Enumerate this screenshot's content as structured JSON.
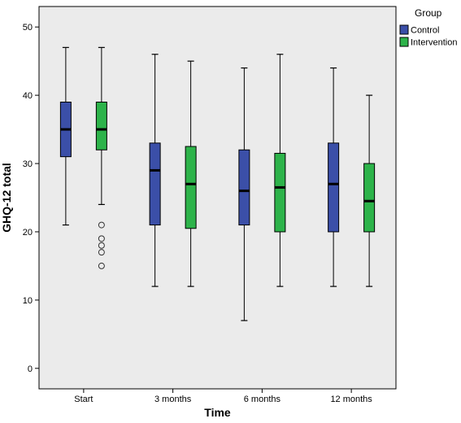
{
  "chart_data": {
    "type": "boxplot",
    "xlabel": "Time",
    "ylabel": "GHQ-12 total",
    "ylim": [
      -3,
      53
    ],
    "yticks": [
      0,
      10,
      20,
      30,
      40,
      50
    ],
    "categories": [
      "Start",
      "3 months",
      "6 months",
      "12 months"
    ],
    "legend": {
      "title": "Group",
      "placement": "top-right-outside"
    },
    "grid": false,
    "series": [
      {
        "name": "Control",
        "color": "#3B4FA8",
        "boxes": [
          {
            "whisker_low": 21,
            "q1": 31,
            "median": 35,
            "q3": 39,
            "whisker_high": 47,
            "outliers": []
          },
          {
            "whisker_low": 12,
            "q1": 21,
            "median": 29,
            "q3": 33,
            "whisker_high": 46,
            "outliers": []
          },
          {
            "whisker_low": 7,
            "q1": 21,
            "median": 26,
            "q3": 32,
            "whisker_high": 44,
            "outliers": []
          },
          {
            "whisker_low": 12,
            "q1": 20,
            "median": 27,
            "q3": 33,
            "whisker_high": 44,
            "outliers": []
          }
        ]
      },
      {
        "name": "Intervention",
        "color": "#2DB34A",
        "boxes": [
          {
            "whisker_low": 24,
            "q1": 32,
            "median": 35,
            "q3": 39,
            "whisker_high": 47,
            "outliers": [
              15,
              17,
              18,
              19,
              21
            ]
          },
          {
            "whisker_low": 12,
            "q1": 20.5,
            "median": 27,
            "q3": 32.5,
            "whisker_high": 45,
            "outliers": []
          },
          {
            "whisker_low": 12,
            "q1": 20,
            "median": 26.5,
            "q3": 31.5,
            "whisker_high": 46,
            "outliers": []
          },
          {
            "whisker_low": 12,
            "q1": 20,
            "median": 24.5,
            "q3": 30,
            "whisker_high": 40,
            "outliers": []
          }
        ]
      }
    ]
  }
}
